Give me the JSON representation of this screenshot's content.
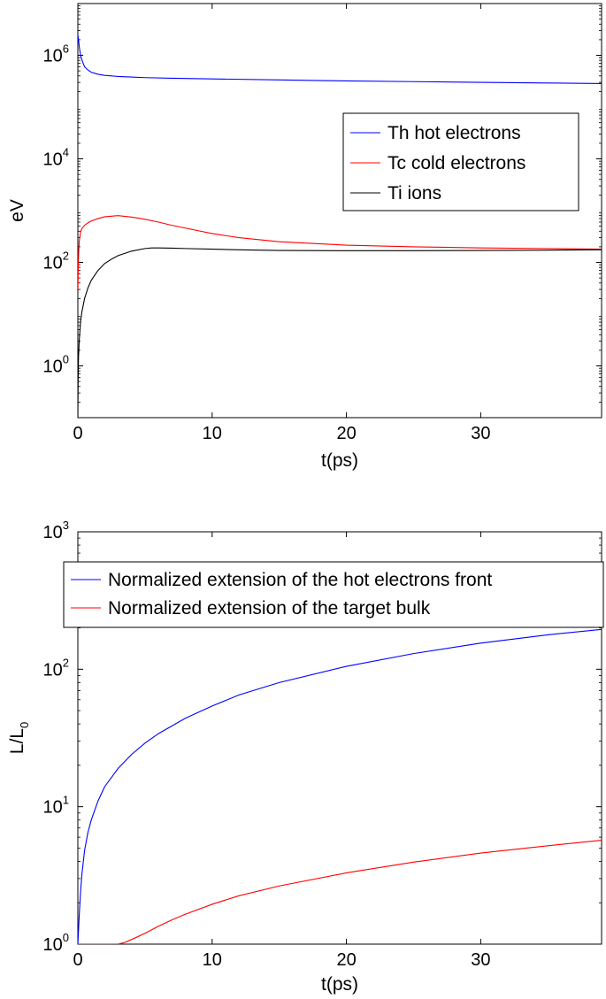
{
  "chart_data": [
    {
      "type": "line",
      "title": "",
      "xlabel": "t(ps)",
      "ylabel": "eV",
      "yscale": "log",
      "xlim": [
        0,
        39
      ],
      "ylim": [
        0.1,
        10000000
      ],
      "xticks": [
        "0",
        "10",
        "20",
        "30"
      ],
      "xtick_values": [
        0,
        10,
        20,
        30
      ],
      "yticks": [
        {
          "base": "10",
          "exp": "0",
          "value": 1
        },
        {
          "base": "10",
          "exp": "2",
          "value": 100
        },
        {
          "base": "10",
          "exp": "4",
          "value": 10000
        },
        {
          "base": "10",
          "exp": "6",
          "value": 1000000
        }
      ],
      "legend": {
        "position": "upper-right"
      },
      "series": [
        {
          "name": "Th hot electrons",
          "color": "#0000ff",
          "x": [
            0,
            0.05,
            0.1,
            0.2,
            0.35,
            0.5,
            0.75,
            1,
            1.5,
            2,
            3,
            4,
            5,
            7,
            10,
            15,
            20,
            25,
            30,
            35,
            39
          ],
          "y": [
            2500000,
            2000000,
            1500000,
            1000000,
            750000,
            600000,
            520000,
            470000,
            430000,
            410000,
            390000,
            380000,
            370000,
            360000,
            350000,
            335000,
            320000,
            310000,
            300000,
            292000,
            285000
          ]
        },
        {
          "name": "Tc cold electrons",
          "color": "#ff0000",
          "x": [
            0,
            0.03,
            0.06,
            0.1,
            0.2,
            0.3,
            0.5,
            0.75,
            1,
            1.5,
            2,
            3,
            4,
            5,
            6,
            7,
            8,
            10,
            12,
            15,
            20,
            25,
            30,
            35,
            39
          ],
          "y": [
            30,
            80,
            150,
            250,
            380,
            450,
            520,
            580,
            630,
            700,
            760,
            800,
            750,
            680,
            600,
            520,
            460,
            360,
            300,
            250,
            215,
            200,
            190,
            185,
            180
          ]
        },
        {
          "name": "Ti ions",
          "color": "#000000",
          "x": [
            0,
            0.02,
            0.05,
            0.1,
            0.2,
            0.3,
            0.5,
            0.75,
            1,
            1.5,
            2,
            2.5,
            3,
            4,
            5,
            5.5,
            6,
            7,
            8,
            10,
            12,
            15,
            20,
            25,
            30,
            35,
            39
          ],
          "y": [
            0.1,
            0.5,
            1.5,
            3,
            7,
            11,
            20,
            32,
            45,
            70,
            95,
            115,
            135,
            165,
            185,
            190,
            190,
            188,
            185,
            180,
            175,
            170,
            168,
            168,
            170,
            172,
            175
          ]
        }
      ]
    },
    {
      "type": "line",
      "title": "",
      "xlabel": "t(ps)",
      "ylabel": {
        "base": "L/L",
        "sub": "0"
      },
      "yscale": "log",
      "xlim": [
        0,
        39
      ],
      "ylim": [
        1,
        1000
      ],
      "xticks": [
        "0",
        "10",
        "20",
        "30"
      ],
      "xtick_values": [
        0,
        10,
        20,
        30
      ],
      "yticks": [
        {
          "base": "10",
          "exp": "0",
          "value": 1
        },
        {
          "base": "10",
          "exp": "1",
          "value": 10
        },
        {
          "base": "10",
          "exp": "2",
          "value": 100
        },
        {
          "base": "10",
          "exp": "3",
          "value": 1000
        }
      ],
      "legend": {
        "position": "top"
      },
      "series": [
        {
          "name": "Normalized extension of the hot electrons front",
          "color": "#0000ff",
          "x": [
            0,
            0.1,
            0.2,
            0.3,
            0.5,
            0.75,
            1,
            1.5,
            2,
            3,
            4,
            5,
            6,
            8,
            10,
            12,
            15,
            20,
            25,
            30,
            35,
            39
          ],
          "y": [
            1,
            1.6,
            2.4,
            3.2,
            4.8,
            6.5,
            8,
            11,
            14,
            19,
            24,
            29,
            34,
            44,
            54,
            65,
            80,
            105,
            130,
            155,
            178,
            195
          ]
        },
        {
          "name": "Normalized extension of the target bulk",
          "color": "#ff0000",
          "x": [
            0,
            1,
            2,
            3,
            3.5,
            4,
            5,
            6,
            7,
            8,
            10,
            12,
            15,
            20,
            25,
            30,
            35,
            39
          ],
          "y": [
            1,
            1,
            1,
            1,
            1.03,
            1.08,
            1.2,
            1.35,
            1.5,
            1.65,
            1.95,
            2.25,
            2.65,
            3.3,
            3.95,
            4.6,
            5.2,
            5.7
          ]
        }
      ]
    }
  ]
}
